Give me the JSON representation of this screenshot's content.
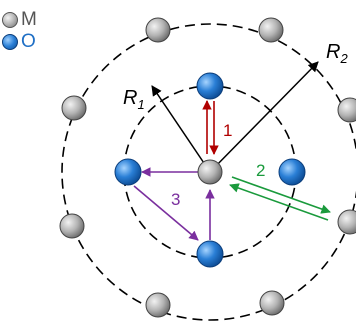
{
  "legend": {
    "metal": {
      "label": "M",
      "color": "#8c8c8c"
    },
    "oxygen": {
      "label": "O",
      "color": "#1f6fc5"
    }
  },
  "radii": {
    "inner": {
      "label": "R",
      "subscript": "1"
    },
    "outer": {
      "label": "R",
      "subscript": "2"
    }
  },
  "paths": [
    {
      "label": "1",
      "color": "#b00000"
    },
    {
      "label": "2",
      "color": "#1a9a3c"
    },
    {
      "label": "3",
      "color": "#7a2f9e"
    }
  ],
  "colors": {
    "outline": "#000000",
    "radius_arrow": "#000000",
    "circle_dash": "#000000"
  }
}
